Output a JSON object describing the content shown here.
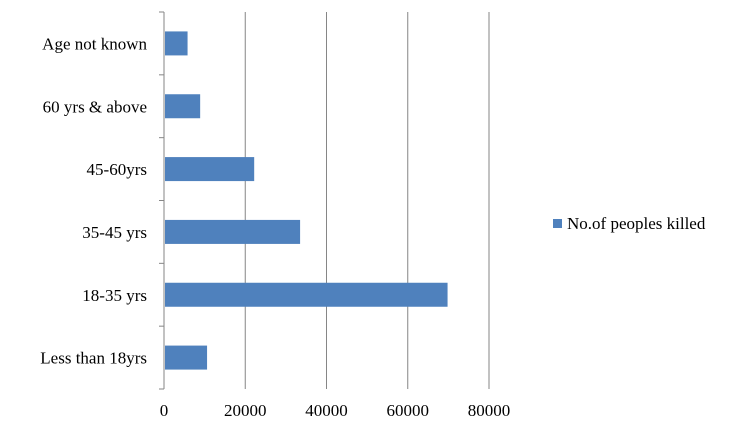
{
  "chart_data": {
    "type": "bar",
    "orientation": "horizontal",
    "title": "",
    "xlabel": "",
    "ylabel": "",
    "categories": [
      "Age not known",
      "60 yrs & above",
      "45-60yrs",
      "35-45 yrs",
      "18-35 yrs",
      "Less than 18yrs"
    ],
    "series": [
      {
        "name": "No.of peoples killed",
        "values": [
          5800,
          8900,
          22200,
          33500,
          69800,
          10600
        ],
        "color": "#4f81bd"
      }
    ],
    "xlim": [
      0,
      80000
    ],
    "xticks": [
      "0",
      "20000",
      "40000",
      "60000",
      "80000"
    ],
    "grid": "vertical",
    "legend_position": "right"
  }
}
